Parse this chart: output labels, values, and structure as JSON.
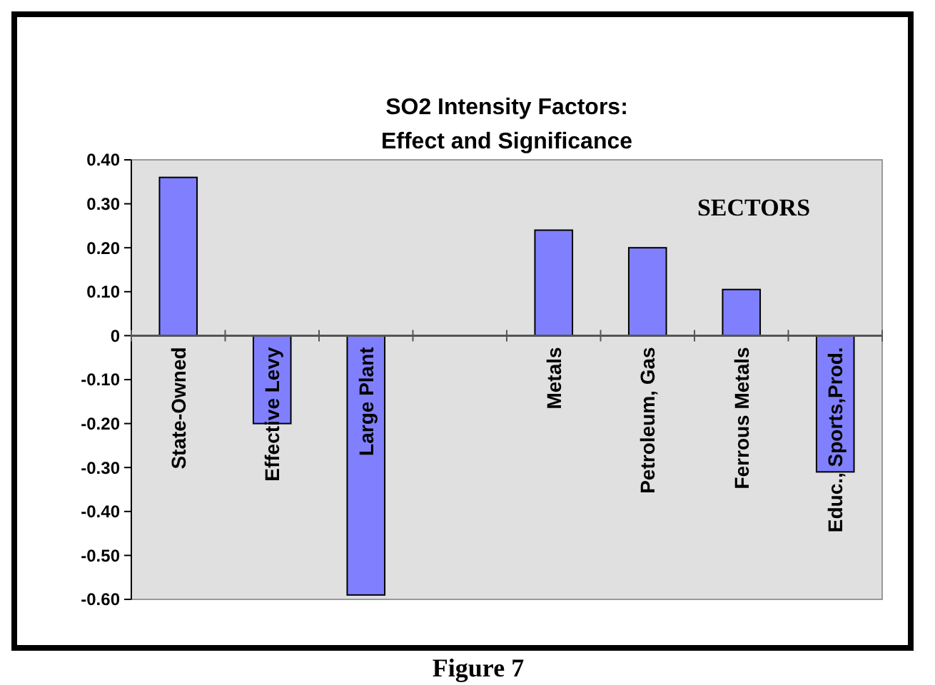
{
  "chart_data": {
    "type": "bar",
    "title": "SO2 Intensity Factors:\nEffect and Significance",
    "categories": [
      "State-Owned",
      "Effective Levy",
      "Large Plant",
      null,
      "Metals",
      "Petroleum, Gas",
      "Ferrous Metals",
      "Educ., Sports,Prod."
    ],
    "values": [
      0.36,
      -0.2,
      -0.59,
      null,
      0.24,
      0.2,
      0.105,
      -0.31
    ],
    "color": "#8080ff",
    "ylim": [
      -0.6,
      0.4
    ],
    "yticks": [
      {
        "value": 0.4,
        "label": "0.40"
      },
      {
        "value": 0.3,
        "label": "0.30"
      },
      {
        "value": 0.2,
        "label": "0.20"
      },
      {
        "value": 0.1,
        "label": "0.10"
      },
      0,
      {
        "value": -0.1,
        "label": "-0.10"
      },
      {
        "value": -0.2,
        "label": "-0.20"
      },
      {
        "value": -0.3,
        "label": "-0.30"
      },
      {
        "value": -0.4,
        "label": "-0.40"
      },
      {
        "value": -0.5,
        "label": "-0.50"
      },
      {
        "value": -0.6,
        "label": "-0.60"
      }
    ],
    "annotations": [
      "SECTORS",
      "Figure 7"
    ]
  }
}
